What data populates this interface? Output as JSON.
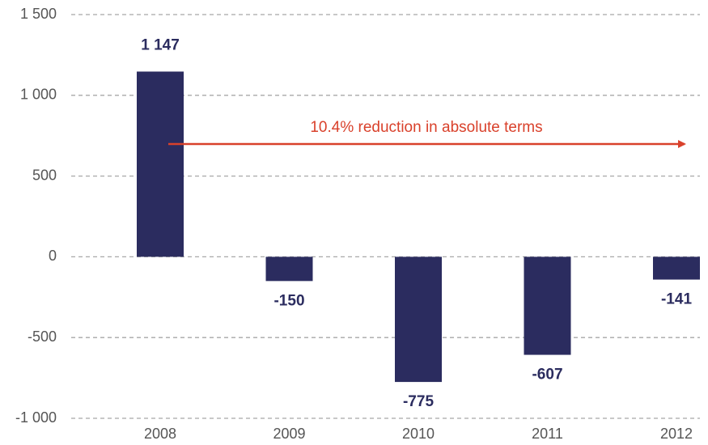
{
  "chart_data": {
    "type": "bar",
    "categories": [
      "2008",
      "2009",
      "2010",
      "2011",
      "2012"
    ],
    "values": [
      1147,
      -150,
      -775,
      -607,
      -141
    ],
    "value_labels": [
      "1 147",
      "-150",
      "-775",
      "-607",
      "-141"
    ],
    "color": "#2b2c5f",
    "ylim": [
      -1000,
      1500
    ],
    "yticks": [
      {
        "value": -1000,
        "label": "-1 000"
      },
      {
        "value": -500,
        "label": "-500"
      },
      0,
      500,
      {
        "value": 1000,
        "label": "1 000"
      },
      {
        "value": 1500,
        "label": "1 500"
      }
    ],
    "grid": true,
    "annotation": "10.4% reduction in absolute terms",
    "annotation_color": "#d9412b"
  }
}
